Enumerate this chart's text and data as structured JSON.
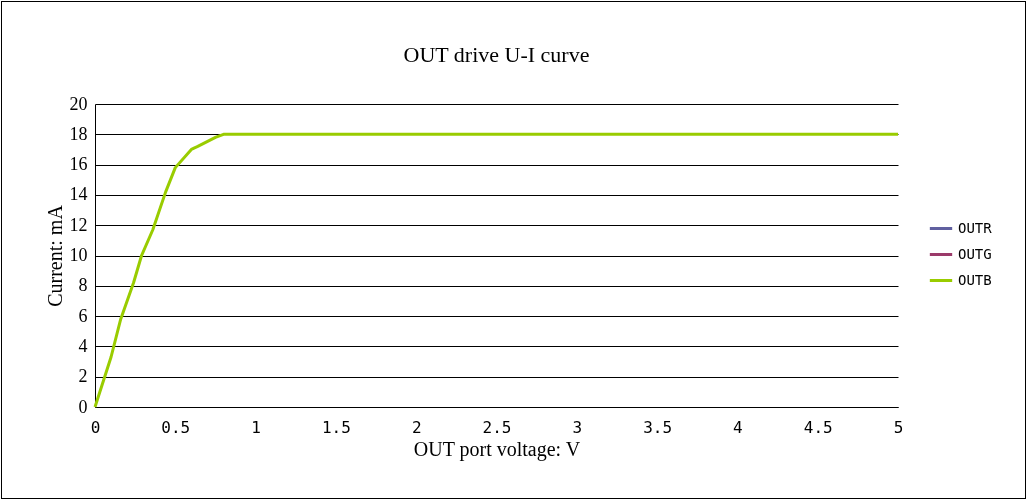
{
  "chart_data": {
    "type": "line",
    "title": "OUT drive U-I curve",
    "xlabel": "OUT port voltage: V",
    "ylabel": "Current: mA",
    "x": [
      0,
      0.1,
      0.16,
      0.24,
      0.29,
      0.36,
      0.44,
      0.5,
      0.6,
      0.64,
      0.75,
      0.8,
      5
    ],
    "series": [
      {
        "name": "OUTR",
        "color": "#6060a0",
        "values": [
          null,
          null,
          null,
          null,
          null,
          null,
          null,
          null,
          null,
          null,
          null,
          null,
          null
        ]
      },
      {
        "name": "OUTG",
        "color": "#9b3a6a",
        "values": [
          null,
          null,
          null,
          null,
          null,
          null,
          null,
          null,
          null,
          null,
          null,
          null,
          null
        ]
      },
      {
        "name": "OUTB",
        "color": "#99cc00",
        "values": [
          0,
          3.3,
          5.8,
          8.2,
          10,
          11.7,
          14.2,
          15.8,
          17,
          17.2,
          17.8,
          18,
          18
        ]
      }
    ],
    "xlim": [
      0,
      5
    ],
    "xticks": [
      0,
      0.5,
      1,
      1.5,
      2,
      2.5,
      3,
      3.5,
      4,
      4.5,
      5
    ],
    "ylim": [
      0,
      20
    ],
    "yticks": [
      0,
      2,
      4,
      6,
      8,
      10,
      12,
      14,
      16,
      18,
      20
    ],
    "grid": "y",
    "legend": "right",
    "marker": "none",
    "line_style": "solid"
  }
}
